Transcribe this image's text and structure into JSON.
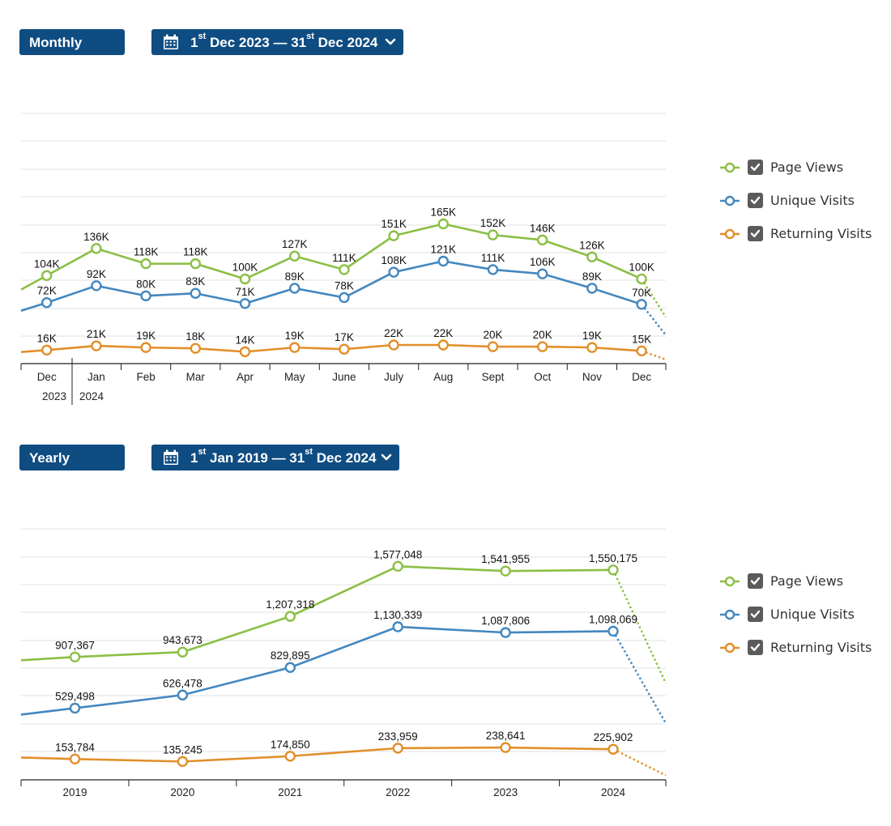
{
  "colors": {
    "page_views": "#8bbf45",
    "unique_visits": "#4387bf",
    "returning_visits": "#e28f2a",
    "button": "#0f4c81"
  },
  "legend": [
    {
      "key": "page_views",
      "label": "Page Views",
      "checked": true
    },
    {
      "key": "unique_visits",
      "label": "Unique Visits",
      "checked": true
    },
    {
      "key": "returning_visits",
      "label": "Returning Visits",
      "checked": true
    }
  ],
  "monthly": {
    "period_select": "Monthly",
    "date_range": {
      "start_day": "1",
      "start_suffix": "st",
      "start_rest": "Dec 2023",
      "separator": "—",
      "end_day": "31",
      "end_suffix": "st",
      "end_rest": "Dec 2024"
    }
  },
  "yearly": {
    "period_select": "Yearly",
    "date_range": {
      "start_day": "1",
      "start_suffix": "st",
      "start_rest": "Jan 2019",
      "separator": "—",
      "end_day": "31",
      "end_suffix": "st",
      "end_rest": "Dec 2024"
    }
  },
  "chart_data": [
    {
      "type": "line",
      "title": "",
      "categories": [
        "Dec",
        "Jan",
        "Feb",
        "Mar",
        "Apr",
        "May",
        "June",
        "July",
        "Aug",
        "Sept",
        "Oct",
        "Nov",
        "Dec"
      ],
      "year_labels": [
        "2023",
        "2024"
      ],
      "ylim": [
        0,
        180000
      ],
      "grid": true,
      "legend_position": "right",
      "series": [
        {
          "key": "page_views",
          "name": "Page Views",
          "values": [
            104000,
            136000,
            118000,
            118000,
            100000,
            127000,
            111000,
            151000,
            165000,
            152000,
            146000,
            126000,
            100000
          ],
          "labels": [
            "104K",
            "136K",
            "118K",
            "118K",
            "100K",
            "127K",
            "111K",
            "151K",
            "165K",
            "152K",
            "146K",
            "126K",
            "100K"
          ]
        },
        {
          "key": "unique_visits",
          "name": "Unique Visits",
          "values": [
            72000,
            92000,
            80000,
            83000,
            71000,
            89000,
            78000,
            108000,
            121000,
            111000,
            106000,
            89000,
            70000
          ],
          "labels": [
            "72K",
            "92K",
            "80K",
            "83K",
            "71K",
            "89K",
            "78K",
            "108K",
            "121K",
            "111K",
            "106K",
            "89K",
            "70K"
          ]
        },
        {
          "key": "returning_visits",
          "name": "Returning Visits",
          "values": [
            16000,
            21000,
            19000,
            18000,
            14000,
            19000,
            17000,
            22000,
            22000,
            20000,
            20000,
            19000,
            15000
          ],
          "labels": [
            "16K",
            "21K",
            "19K",
            "18K",
            "14K",
            "19K",
            "17K",
            "22K",
            "22K",
            "20K",
            "20K",
            "19K",
            "15K"
          ]
        }
      ]
    },
    {
      "type": "line",
      "title": "",
      "categories": [
        "2019",
        "2020",
        "2021",
        "2022",
        "2023",
        "2024"
      ],
      "ylim": [
        0,
        1750000
      ],
      "grid": true,
      "legend_position": "right",
      "series": [
        {
          "key": "page_views",
          "name": "Page Views",
          "values": [
            907367,
            943673,
            1207318,
            1577048,
            1541955,
            1550175
          ],
          "labels": [
            "907,367",
            "943,673",
            "1,207,318",
            "1,577,048",
            "1,541,955",
            "1,550,175"
          ]
        },
        {
          "key": "unique_visits",
          "name": "Unique Visits",
          "values": [
            529498,
            626478,
            829895,
            1130339,
            1087806,
            1098069
          ],
          "labels": [
            "529,498",
            "626,478",
            "829,895",
            "1,130,339",
            "1,087,806",
            "1,098,069"
          ]
        },
        {
          "key": "returning_visits",
          "name": "Returning Visits",
          "values": [
            153784,
            135245,
            174850,
            233959,
            238641,
            225902
          ],
          "labels": [
            "153,784",
            "135,245",
            "174,850",
            "233,959",
            "238,641",
            "225,902"
          ]
        }
      ]
    }
  ]
}
